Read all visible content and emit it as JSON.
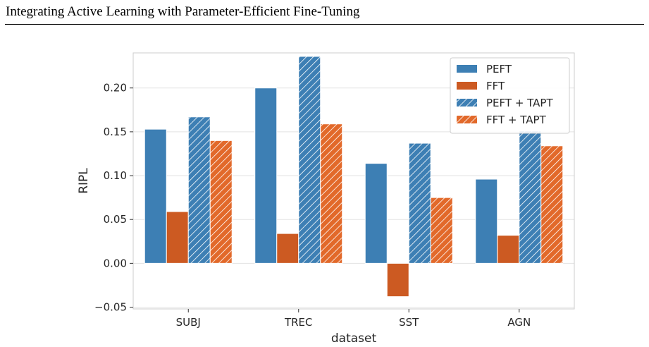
{
  "header": {
    "title": "Integrating Active Learning with Parameter-Efficient Fine-Tuning"
  },
  "chart_data": {
    "type": "bar",
    "xlabel": "dataset",
    "ylabel": "RIPL",
    "categories": [
      "SUBJ",
      "TREC",
      "SST",
      "AGN"
    ],
    "ylim": [
      -0.052,
      0.24
    ],
    "yticks": [
      -0.05,
      0.0,
      0.05,
      0.1,
      0.15,
      0.2
    ],
    "ytick_labels": [
      "−0.05",
      "0.00",
      "0.05",
      "0.10",
      "0.15",
      "0.20"
    ],
    "grid": true,
    "legend_position": "top-right",
    "series": [
      {
        "name": "PEFT",
        "color": "#3d7fb4",
        "hatch": false,
        "values": [
          0.153,
          0.2,
          0.114,
          0.096
        ]
      },
      {
        "name": "FFT",
        "color": "#cc5a22",
        "hatch": false,
        "values": [
          0.059,
          0.034,
          -0.038,
          0.032
        ]
      },
      {
        "name": "PEFT + TAPT",
        "color": "#3d7fb4",
        "hatch": true,
        "values": [
          0.167,
          0.236,
          0.137,
          0.151
        ]
      },
      {
        "name": "FFT + TAPT",
        "color": "#e2692a",
        "hatch": true,
        "values": [
          0.14,
          0.159,
          0.075,
          0.134
        ]
      }
    ]
  }
}
